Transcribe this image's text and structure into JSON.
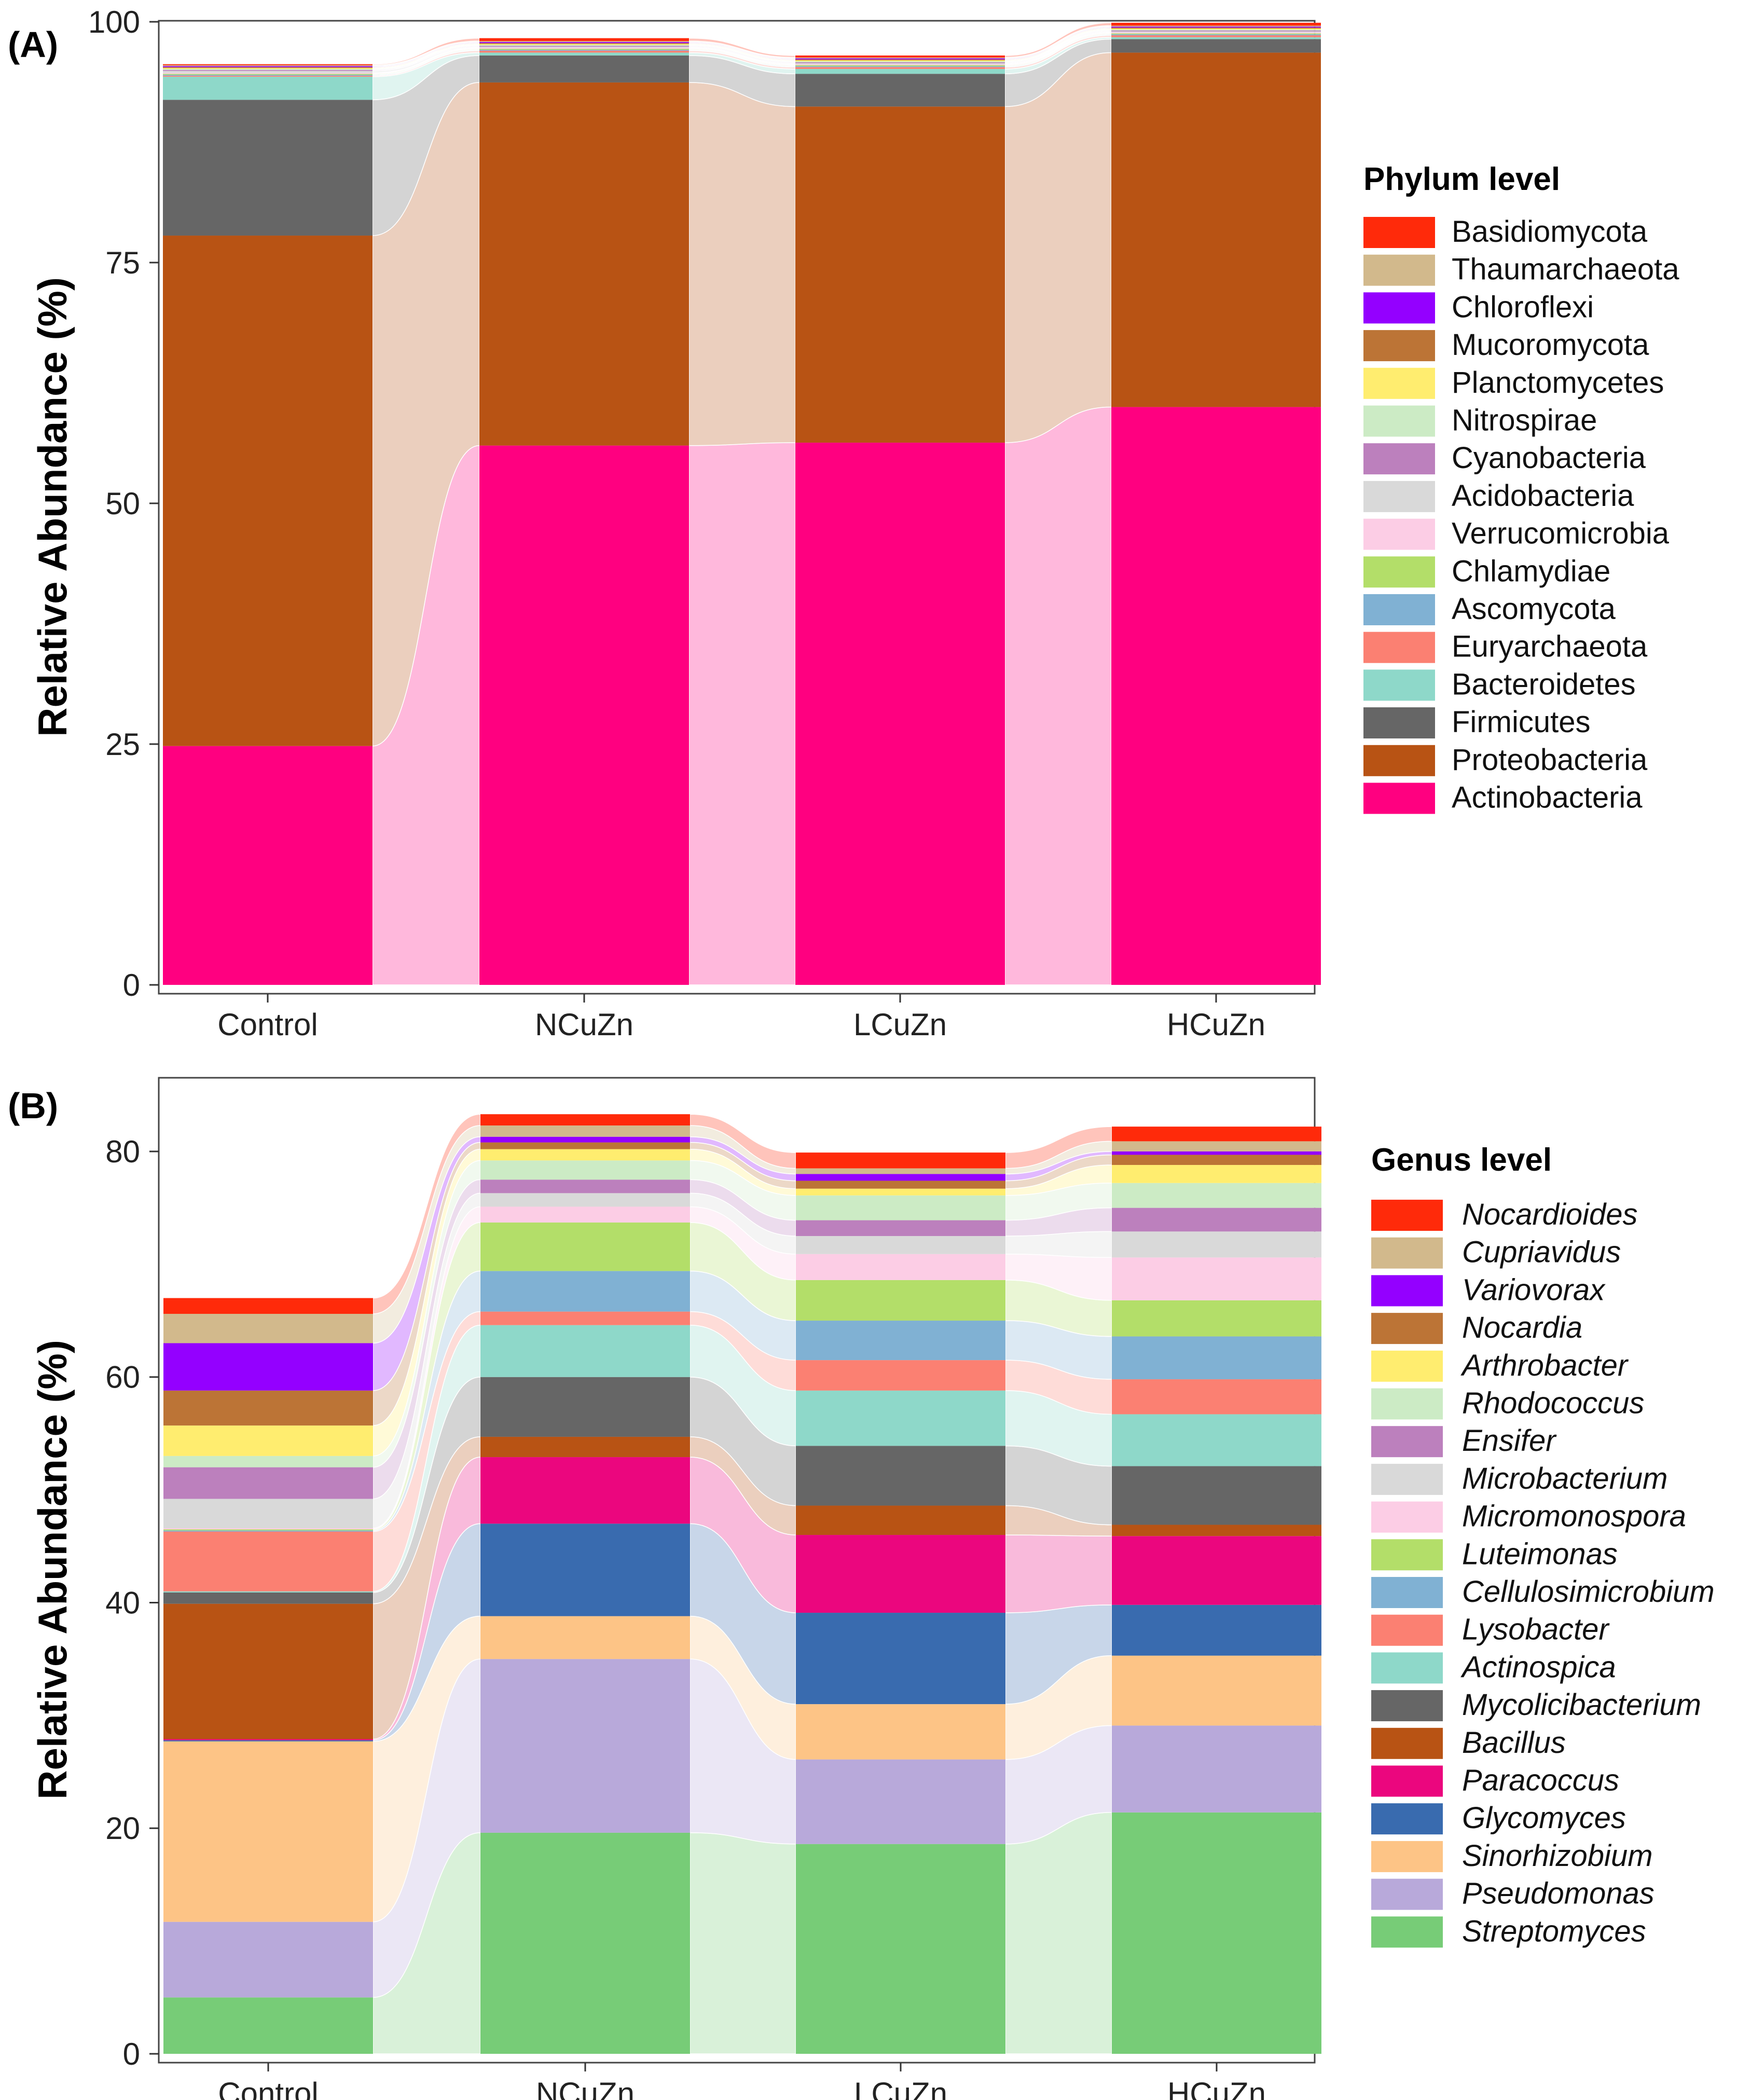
{
  "chart_data": [
    {
      "panel_label": "(A)",
      "type": "area",
      "subtype": "stacked-bar-alluvial",
      "ylabel": "Relative Abundance (%)",
      "xlabel": "",
      "categories": [
        "Control",
        "NCuZn",
        "LCuZn",
        "HCuZn"
      ],
      "ylim": [
        0,
        100
      ],
      "yticks": [
        "0",
        "25",
        "50",
        "75",
        "100"
      ],
      "legend_title": "Phylum level",
      "legend_italic": false,
      "legend": [
        "Basidiomycota",
        "Thaumarchaeota",
        "Chloroflexi",
        "Mucoromycota",
        "Planctomycetes",
        "Nitrospirae",
        "Cyanobacteria",
        "Acidobacteria",
        "Verrucomicrobia",
        "Chlamydiae",
        "Ascomycota",
        "Euryarchaeota",
        "Bacteroidetes",
        "Firmicutes",
        "Proteobacteria",
        "Actinobacteria"
      ],
      "series": [
        {
          "name": "Actinobacteria",
          "color": "#FF0080",
          "values": [
            24.8,
            56.0,
            56.3,
            60.0
          ]
        },
        {
          "name": "Proteobacteria",
          "color": "#B85314",
          "values": [
            53.0,
            37.7,
            34.9,
            36.8
          ]
        },
        {
          "name": "Firmicutes",
          "color": "#666666",
          "values": [
            14.1,
            2.8,
            3.4,
            1.4
          ]
        },
        {
          "name": "Bacteroidetes",
          "color": "#8ED8C9",
          "values": [
            2.4,
            0.3,
            0.5,
            0.2
          ]
        },
        {
          "name": "Euryarchaeota",
          "color": "#FB8072",
          "values": [
            0.1,
            0.2,
            0.2,
            0.2
          ]
        },
        {
          "name": "Ascomycota",
          "color": "#80B1D3",
          "values": [
            0.1,
            0.1,
            0.1,
            0.1
          ]
        },
        {
          "name": "Chlamydiae",
          "color": "#B3DE69",
          "values": [
            0.1,
            0.1,
            0.1,
            0.1
          ]
        },
        {
          "name": "Verrucomicrobia",
          "color": "#FCCDE5",
          "values": [
            0.1,
            0.1,
            0.1,
            0.1
          ]
        },
        {
          "name": "Acidobacteria",
          "color": "#D9D9D9",
          "values": [
            0.2,
            0.1,
            0.1,
            0.1
          ]
        },
        {
          "name": "Cyanobacteria",
          "color": "#BC80BD",
          "values": [
            0.1,
            0.1,
            0.1,
            0.1
          ]
        },
        {
          "name": "Nitrospirae",
          "color": "#CCEBC5",
          "values": [
            0.1,
            0.1,
            0.1,
            0.1
          ]
        },
        {
          "name": "Planctomycetes",
          "color": "#FFED6F",
          "values": [
            0.1,
            0.1,
            0.1,
            0.1
          ]
        },
        {
          "name": "Mucoromycota",
          "color": "#BC7436",
          "values": [
            0.1,
            0.1,
            0.1,
            0.1
          ]
        },
        {
          "name": "Chloroflexi",
          "color": "#9400FF",
          "values": [
            0.1,
            0.1,
            0.1,
            0.1
          ]
        },
        {
          "name": "Thaumarchaeota",
          "color": "#D2B98C",
          "values": [
            0.1,
            0.1,
            0.1,
            0.1
          ]
        },
        {
          "name": "Basidiomycota",
          "color": "#FF2A0A",
          "values": [
            0.1,
            0.3,
            0.2,
            0.3
          ]
        }
      ]
    },
    {
      "panel_label": "(B)",
      "type": "area",
      "subtype": "stacked-bar-alluvial",
      "ylabel": "Relative Abundance (%)",
      "xlabel": "",
      "categories": [
        "Control",
        "NCuZn",
        "LCuZn",
        "HCuZn"
      ],
      "ylim": [
        0,
        84
      ],
      "yticks": [
        "0",
        "20",
        "40",
        "60",
        "80"
      ],
      "legend_title": "Genus level",
      "legend_italic": true,
      "legend": [
        "Nocardioides",
        "Cupriavidus",
        "Variovorax",
        "Nocardia",
        "Arthrobacter",
        "Rhodococcus",
        "Ensifer",
        "Microbacterium",
        "Micromonospora",
        "Luteimonas",
        "Cellulosimicrobium",
        "Lysobacter",
        "Actinospica",
        "Mycolicibacterium",
        "Bacillus",
        "Paracoccus",
        "Glycomyces",
        "Sinorhizobium",
        "Pseudomonas",
        "Streptomyces"
      ],
      "series": [
        {
          "name": "Streptomyces",
          "color": "#77CC77",
          "values": [
            5.0,
            19.6,
            18.6,
            21.4
          ]
        },
        {
          "name": "Pseudomonas",
          "color": "#B8A9DA",
          "values": [
            6.7,
            15.4,
            7.5,
            7.7
          ]
        },
        {
          "name": "Sinorhizobium",
          "color": "#FDC486",
          "values": [
            16.0,
            3.8,
            4.9,
            6.2
          ]
        },
        {
          "name": "Glycomyces",
          "color": "#396BAF",
          "values": [
            0.1,
            8.2,
            8.1,
            4.5
          ]
        },
        {
          "name": "Paracoccus",
          "color": "#EB067E",
          "values": [
            0.1,
            5.9,
            6.9,
            6.1
          ]
        },
        {
          "name": "Bacillus",
          "color": "#B85314",
          "values": [
            12.0,
            1.8,
            2.6,
            1.0
          ]
        },
        {
          "name": "Mycolicibacterium",
          "color": "#666666",
          "values": [
            1.0,
            5.3,
            5.3,
            5.2
          ]
        },
        {
          "name": "Actinospica",
          "color": "#8ED8C9",
          "values": [
            0.1,
            4.6,
            4.9,
            4.6
          ]
        },
        {
          "name": "Lysobacter",
          "color": "#FB8072",
          "values": [
            5.3,
            1.2,
            2.7,
            3.1
          ]
        },
        {
          "name": "Cellulosimicrobium",
          "color": "#80B1D3",
          "values": [
            0.1,
            3.6,
            3.5,
            3.8
          ]
        },
        {
          "name": "Luteimonas",
          "color": "#B3DE69",
          "values": [
            0.1,
            4.3,
            3.6,
            3.2
          ]
        },
        {
          "name": "Micromonospora",
          "color": "#FCCDE5",
          "values": [
            0.1,
            1.4,
            2.3,
            3.8
          ]
        },
        {
          "name": "Microbacterium",
          "color": "#D9D9D9",
          "values": [
            2.6,
            1.2,
            1.6,
            2.3
          ]
        },
        {
          "name": "Ensifer",
          "color": "#BC80BD",
          "values": [
            2.8,
            1.2,
            1.4,
            2.1
          ]
        },
        {
          "name": "Rhodococcus",
          "color": "#CCEBC5",
          "values": [
            1.0,
            1.7,
            2.2,
            2.2
          ]
        },
        {
          "name": "Arthrobacter",
          "color": "#FFED6F",
          "values": [
            2.7,
            1.0,
            0.6,
            1.6
          ]
        },
        {
          "name": "Nocardia",
          "color": "#BC7436",
          "values": [
            3.1,
            0.6,
            0.7,
            0.9
          ]
        },
        {
          "name": "Variovorax",
          "color": "#9400FF",
          "values": [
            4.2,
            0.5,
            0.6,
            0.3
          ]
        },
        {
          "name": "Cupriavidus",
          "color": "#D2B98C",
          "values": [
            2.6,
            1.0,
            0.5,
            0.9
          ]
        },
        {
          "name": "Nocardioides",
          "color": "#FF2A0A",
          "values": [
            1.4,
            1.0,
            1.4,
            1.3
          ]
        }
      ]
    }
  ]
}
